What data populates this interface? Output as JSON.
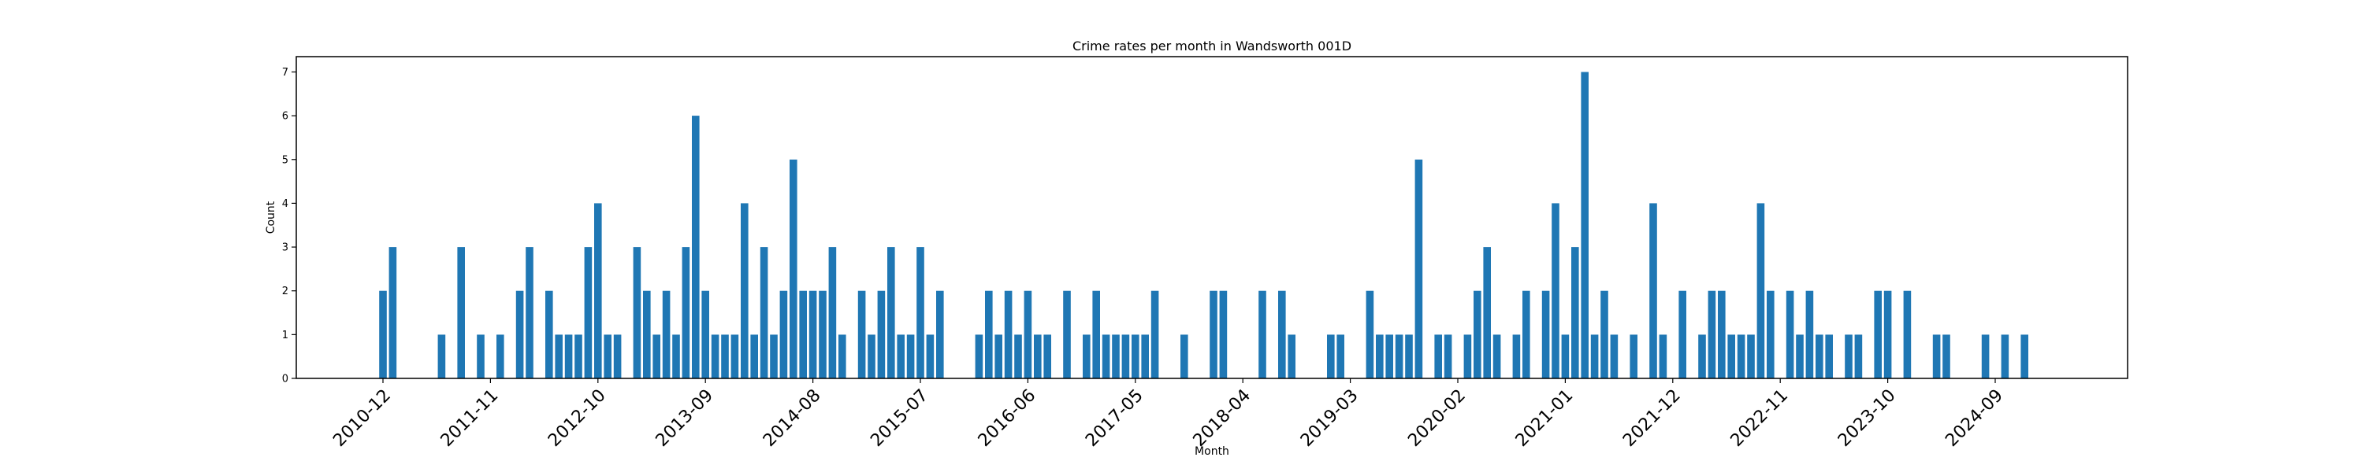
{
  "chart_data": {
    "type": "bar",
    "title": "Crime rates per month in Wandsworth 001D",
    "xlabel": "Month",
    "ylabel": "Count",
    "ylim": [
      0,
      7.35
    ],
    "yticks": [
      0,
      1,
      2,
      3,
      4,
      5,
      6,
      7
    ],
    "xticks": [
      "2010-12",
      "2011-11",
      "2012-10",
      "2013-09",
      "2014-08",
      "2015-07",
      "2016-06",
      "2017-05",
      "2018-04",
      "2019-03",
      "2020-02",
      "2021-01",
      "2021-12",
      "2022-11",
      "2023-10",
      "2024-09"
    ],
    "grid": false,
    "color": "#1f77b4",
    "x": [
      "2010-12",
      "2011-01",
      "2011-06",
      "2011-08",
      "2011-10",
      "2011-12",
      "2012-02",
      "2012-03",
      "2012-05",
      "2012-06",
      "2012-07",
      "2012-08",
      "2012-09",
      "2012-10",
      "2012-11",
      "2012-12",
      "2013-02",
      "2013-03",
      "2013-04",
      "2013-05",
      "2013-06",
      "2013-07",
      "2013-08",
      "2013-09",
      "2013-10",
      "2013-11",
      "2013-12",
      "2014-01",
      "2014-02",
      "2014-03",
      "2014-04",
      "2014-05",
      "2014-06",
      "2014-07",
      "2014-08",
      "2014-09",
      "2014-10",
      "2014-11",
      "2015-01",
      "2015-02",
      "2015-03",
      "2015-04",
      "2015-05",
      "2015-06",
      "2015-07",
      "2015-08",
      "2015-09",
      "2016-01",
      "2016-02",
      "2016-03",
      "2016-04",
      "2016-05",
      "2016-06",
      "2016-07",
      "2016-08",
      "2016-10",
      "2016-12",
      "2017-01",
      "2017-02",
      "2017-03",
      "2017-04",
      "2017-05",
      "2017-06",
      "2017-07",
      "2017-10",
      "2018-01",
      "2018-02",
      "2018-06",
      "2018-08",
      "2018-09",
      "2019-01",
      "2019-02",
      "2019-05",
      "2019-06",
      "2019-07",
      "2019-08",
      "2019-09",
      "2019-10",
      "2019-12",
      "2020-01",
      "2020-03",
      "2020-04",
      "2020-05",
      "2020-06",
      "2020-08",
      "2020-09",
      "2020-11",
      "2020-12",
      "2021-01",
      "2021-02",
      "2021-03",
      "2021-04",
      "2021-05",
      "2021-06",
      "2021-08",
      "2021-10",
      "2021-11",
      "2022-01",
      "2022-03",
      "2022-04",
      "2022-05",
      "2022-06",
      "2022-07",
      "2022-08",
      "2022-09",
      "2022-10",
      "2022-12",
      "2023-01",
      "2023-02",
      "2023-03",
      "2023-04",
      "2023-06",
      "2023-07",
      "2023-09",
      "2023-10",
      "2023-12",
      "2024-03",
      "2024-04",
      "2024-08",
      "2024-10",
      "2024-12"
    ],
    "values": [
      2,
      3,
      1,
      3,
      1,
      1,
      2,
      3,
      2,
      1,
      1,
      1,
      3,
      4,
      1,
      1,
      3,
      2,
      1,
      2,
      1,
      3,
      6,
      2,
      1,
      1,
      1,
      4,
      1,
      3,
      1,
      2,
      5,
      2,
      2,
      2,
      3,
      1,
      2,
      1,
      2,
      3,
      1,
      1,
      3,
      1,
      2,
      1,
      2,
      1,
      2,
      1,
      2,
      1,
      1,
      2,
      1,
      2,
      1,
      1,
      1,
      1,
      1,
      2,
      1,
      2,
      2,
      2,
      2,
      1,
      1,
      1,
      2,
      1,
      1,
      1,
      1,
      5,
      1,
      1,
      1,
      2,
      3,
      1,
      1,
      2,
      2,
      4,
      1,
      3,
      7,
      1,
      2,
      1,
      1,
      4,
      1,
      2,
      1,
      2,
      2,
      1,
      1,
      1,
      4,
      2,
      2,
      1,
      2,
      1,
      1,
      1,
      1,
      2,
      2,
      2,
      1,
      1,
      1,
      1,
      1
    ]
  }
}
